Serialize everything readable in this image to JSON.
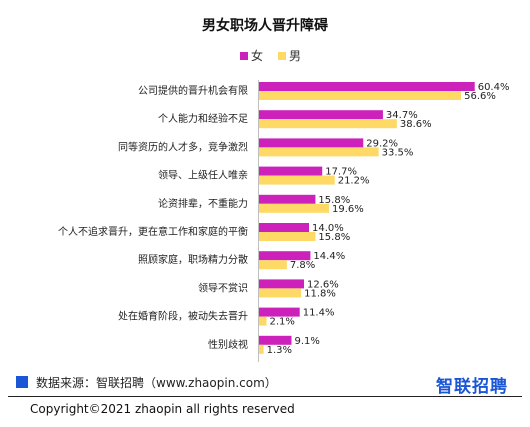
{
  "chart_data": {
    "type": "bar",
    "orientation": "horizontal",
    "title": "男女职场人晋升障碍",
    "legend_position": "top-center",
    "categories": [
      "公司提供的晋升机会有限",
      "个人能力和经验不足",
      "同等资历的人才多，竞争激烈",
      "领导、上级任人唯亲",
      "论资排辈，不重能力",
      "个人不追求晋升，更在意工作和家庭的平衡",
      "照顾家庭，职场精力分散",
      "领导不赏识",
      "处在婚育阶段，被动失去晋升",
      "性别歧视"
    ],
    "series": [
      {
        "name": "女",
        "color": "#cc22bb",
        "values": [
          60.4,
          34.7,
          29.2,
          17.7,
          15.8,
          14.0,
          14.4,
          12.6,
          11.4,
          9.1
        ],
        "labels": [
          "60.4%",
          "34.7%",
          "29.2%",
          "17.7%",
          "15.8%",
          "14.0%",
          "14.4%",
          "12.6%",
          "11.4%",
          "9.1%"
        ]
      },
      {
        "name": "男",
        "color": "#ffd966",
        "values": [
          56.6,
          38.6,
          33.5,
          21.2,
          19.6,
          15.8,
          7.8,
          11.8,
          2.1,
          1.3
        ],
        "labels": [
          "56.6%",
          "38.6%",
          "33.5%",
          "21.2%",
          "19.6%",
          "15.8%",
          "7.8%",
          "11.8%",
          "2.1%",
          "1.3%"
        ]
      }
    ],
    "xlim": [
      0,
      70
    ],
    "grid": false
  },
  "footer": {
    "source": "数据来源：智联招聘（www.zhaopin.com）",
    "source_marker_color": "#1a56d6",
    "brand": "智联招聘",
    "copyright": "Copyright©2021 zhaopin all rights reserved"
  }
}
